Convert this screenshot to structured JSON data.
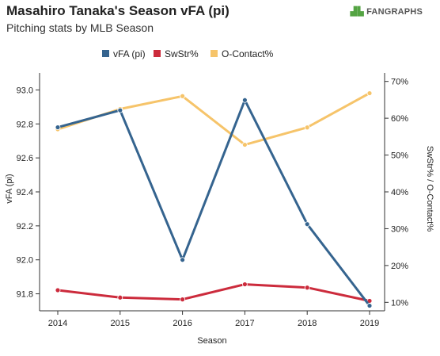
{
  "header": {
    "title": "Masahiro Tanaka's Season vFA (pi)",
    "subtitle": "Pitching stats by MLB Season",
    "logo_text": "FANGRAPHS"
  },
  "chart_data": {
    "type": "line",
    "x": [
      2014,
      2015,
      2016,
      2017,
      2018,
      2019
    ],
    "x_tick_labels": [
      "2014",
      "2015",
      "2016",
      "2017",
      "2018",
      "2019"
    ],
    "xlabel": "Season",
    "ylabel": "vFA (pi)",
    "y2label": "SwStr% / O-Contact%",
    "ylim": [
      91.7,
      93.1
    ],
    "y_ticks": [
      91.8,
      92.0,
      92.2,
      92.4,
      92.6,
      92.8,
      93.0
    ],
    "y_tick_labels": [
      "91.8",
      "92.0",
      "92.2",
      "92.4",
      "92.6",
      "92.8",
      "93.0"
    ],
    "y2lim": [
      7.7,
      72.3
    ],
    "y2_ticks": [
      10,
      20,
      30,
      40,
      50,
      60,
      70
    ],
    "y2_tick_labels": [
      "10%",
      "20%",
      "30%",
      "40%",
      "50%",
      "60%",
      "70%"
    ],
    "legend_position": "top",
    "series": [
      {
        "name": "vFA (pi)",
        "axis": "left",
        "color": "#35648f",
        "values": [
          92.78,
          92.88,
          92.0,
          92.94,
          92.21,
          91.73
        ]
      },
      {
        "name": "SwStr%",
        "axis": "right",
        "color": "#cc2b3c",
        "values": [
          13.3,
          11.3,
          10.8,
          14.9,
          14.0,
          10.4
        ]
      },
      {
        "name": "O-Contact%",
        "axis": "right",
        "color": "#f6c46a",
        "values": [
          57.0,
          62.5,
          66.0,
          52.8,
          57.5,
          66.8
        ]
      }
    ]
  }
}
